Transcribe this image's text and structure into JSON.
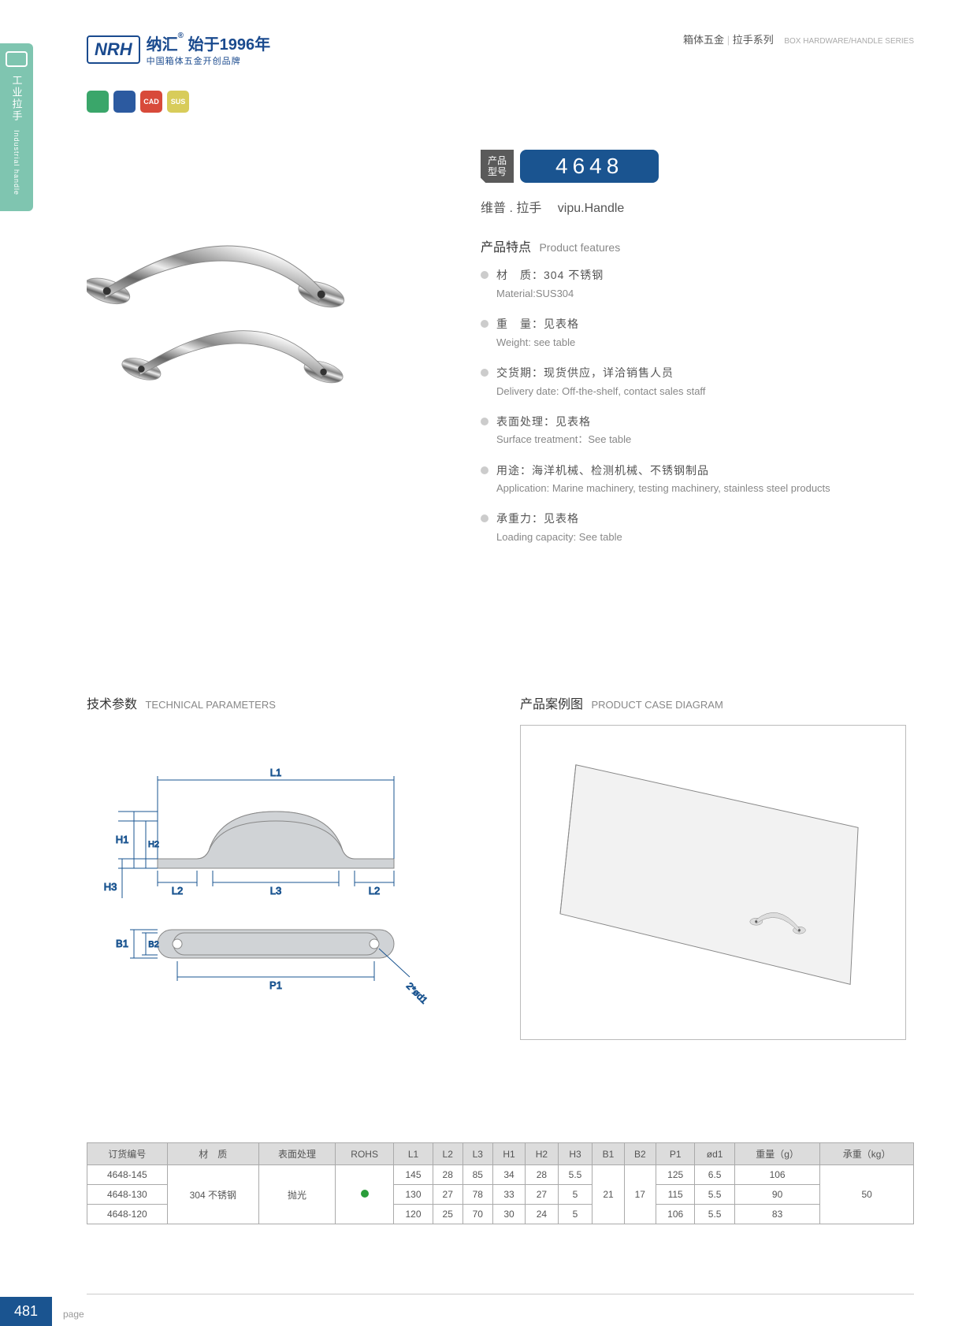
{
  "sidebar": {
    "cn": "工业拉手",
    "en": "Industrial handle"
  },
  "header": {
    "logo_abbr": "NRH",
    "brand_cn": "纳汇",
    "reg": "®",
    "since": "始于1996年",
    "tagline": "中国箱体五金开创品牌",
    "right_cn_1": "箱体五金",
    "right_cn_2": "拉手系列",
    "right_en": "BOX HARDWARE/HANDLE SERIES"
  },
  "badges": [
    {
      "color": "#3aa66a",
      "label": ""
    },
    {
      "color": "#2c5aa0",
      "label": "✕"
    },
    {
      "color": "#d84a3a",
      "label": "CAD"
    },
    {
      "color": "#d8cc5a",
      "label": "SUS"
    }
  ],
  "model": {
    "label_l1": "产品",
    "label_l2": "型号",
    "number": "4648"
  },
  "subtitle": {
    "cn": "维普 . 拉手",
    "en": "vipu.Handle"
  },
  "features": {
    "title_cn": "产品特点",
    "title_en": "Product features",
    "items": [
      {
        "cn": "材　质：304 不锈钢",
        "en": "Material:SUS304"
      },
      {
        "cn": "重　量：见表格",
        "en": "Weight: see table"
      },
      {
        "cn": "交货期：现货供应，详洽销售人员",
        "en": "Delivery date: Off-the-shelf, contact sales staff"
      },
      {
        "cn": "表面处理：见表格",
        "en": "Surface treatment：See table"
      },
      {
        "cn": "用途：海洋机械、检测机械、不锈钢制品",
        "en": "Application: Marine machinery, testing machinery, stainless steel products"
      },
      {
        "cn": "承重力：见表格",
        "en": "Loading capacity: See table"
      }
    ]
  },
  "sections": {
    "tech_cn": "技术参数",
    "tech_en": "TECHNICAL PARAMETERS",
    "case_cn": "产品案例图",
    "case_en": "PRODUCT CASE DIAGRAM"
  },
  "diagram_labels": {
    "L1": "L1",
    "L2": "L2",
    "L3": "L3",
    "H1": "H1",
    "H2": "H2",
    "H3": "H3",
    "B1": "B1",
    "B2": "B2",
    "P1": "P1",
    "d1": "2*ød1"
  },
  "table": {
    "columns": [
      "订货编号",
      "材　质",
      "表面处理",
      "ROHS",
      "L1",
      "L2",
      "L3",
      "H1",
      "H2",
      "H3",
      "B1",
      "B2",
      "P1",
      "ød1",
      "重量（g）",
      "承重（kg）"
    ],
    "material": "304 不锈钢",
    "surface": "抛光",
    "B1": "21",
    "B2": "17",
    "load": "50",
    "rows": [
      {
        "id": "4648-145",
        "L1": "145",
        "L2": "28",
        "L3": "85",
        "H1": "34",
        "H2": "28",
        "H3": "5.5",
        "P1": "125",
        "d1": "6.5",
        "wt": "106"
      },
      {
        "id": "4648-130",
        "L1": "130",
        "L2": "27",
        "L3": "78",
        "H1": "33",
        "H2": "27",
        "H3": "5",
        "P1": "115",
        "d1": "5.5",
        "wt": "90"
      },
      {
        "id": "4648-120",
        "L1": "120",
        "L2": "25",
        "L3": "70",
        "H1": "30",
        "H2": "24",
        "H3": "5",
        "P1": "106",
        "d1": "5.5",
        "wt": "83"
      }
    ]
  },
  "page": {
    "num": "481",
    "label": "page"
  },
  "style": {
    "accent": "#1a5490",
    "teal": "#7fc5b0",
    "diagram_fill": "#d0d3d6",
    "diagram_stroke": "#1a5490",
    "diagram_label": "#1a5490"
  }
}
